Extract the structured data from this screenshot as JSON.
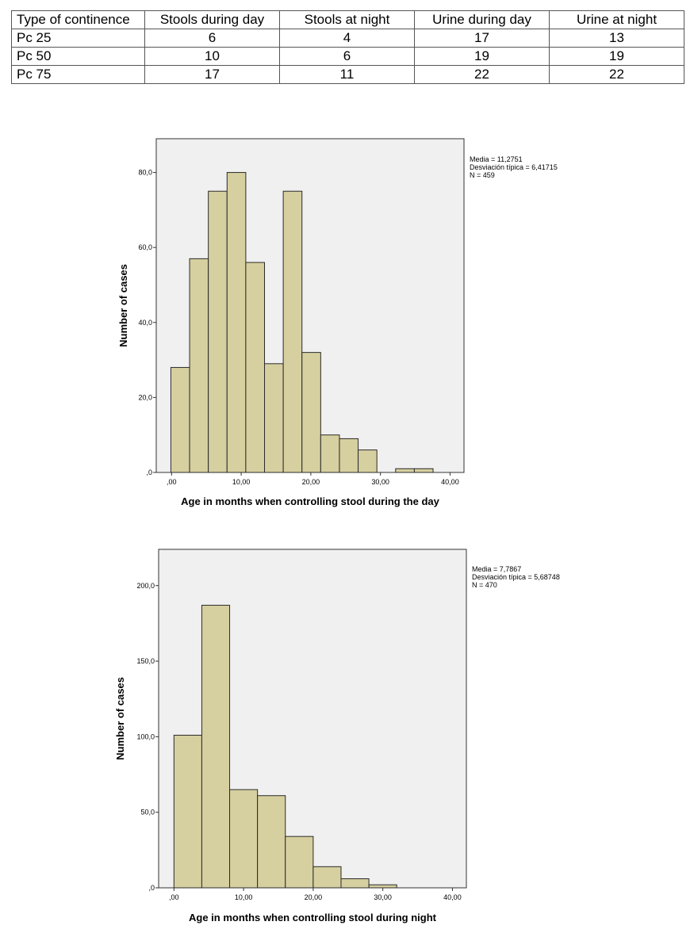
{
  "table": {
    "headers": [
      "Type of continence",
      "Stools during day",
      "Stools at night",
      "Urine during day",
      "Urine at night"
    ],
    "rows": [
      {
        "label": "Pc 25",
        "values": [
          "6",
          "4",
          "17",
          "13"
        ]
      },
      {
        "label": "Pc 50",
        "values": [
          "10",
          "6",
          "19",
          "19"
        ]
      },
      {
        "label": "Pc 75",
        "values": [
          "17",
          "11",
          "22",
          "22"
        ]
      }
    ]
  },
  "chart_data": [
    {
      "type": "bar",
      "xlabel": "Age in months when controlling stool during the day",
      "ylabel": "Number of cases",
      "x_ticks": [
        ",00",
        "10,00",
        "20,00",
        "30,00",
        "40,00"
      ],
      "x_tick_values": [
        0,
        10,
        20,
        30,
        40
      ],
      "y_ticks": [
        ",0",
        "20,0",
        "40,0",
        "60,0",
        "80,0"
      ],
      "y_tick_values": [
        0,
        20,
        40,
        60,
        80
      ],
      "xlim": [
        -2.2,
        42
      ],
      "ylim": [
        0,
        89
      ],
      "bin_edges": [
        -0.1,
        2.59,
        5.28,
        7.97,
        10.66,
        13.35,
        16.04,
        18.73,
        21.42,
        24.11,
        26.8,
        29.49,
        32.18,
        34.87,
        37.56
      ],
      "values": [
        28,
        57,
        75,
        80,
        56,
        29,
        75,
        32,
        10,
        9,
        6,
        0,
        1,
        1
      ],
      "bar_color": "#d6cf9f",
      "plot_background": "#f0f0f0",
      "stats": [
        "Media = 11,2751",
        "Desviación típica = 6,41715",
        "N = 459"
      ]
    },
    {
      "type": "bar",
      "xlabel": "Age in months when controlling stool during night",
      "ylabel": "Number of cases",
      "x_ticks": [
        ",00",
        "10,00",
        "20,00",
        "30,00",
        "40,00"
      ],
      "x_tick_values": [
        0,
        10,
        20,
        30,
        40
      ],
      "y_ticks": [
        ",0",
        "50,0",
        "100,0",
        "150,0",
        "200,0"
      ],
      "y_tick_values": [
        0,
        50,
        100,
        150,
        200
      ],
      "xlim": [
        -2.2,
        42
      ],
      "ylim": [
        0,
        224
      ],
      "bin_edges": [
        0,
        4,
        8,
        12,
        16,
        20,
        24,
        28,
        32
      ],
      "values": [
        101,
        187,
        65,
        61,
        34,
        14,
        6,
        2
      ],
      "bar_color": "#d6cf9f",
      "plot_background": "#f0f0f0",
      "stats": [
        "Media = 7,7867",
        "Desviación típica = 5,68748",
        "N = 470"
      ]
    }
  ]
}
